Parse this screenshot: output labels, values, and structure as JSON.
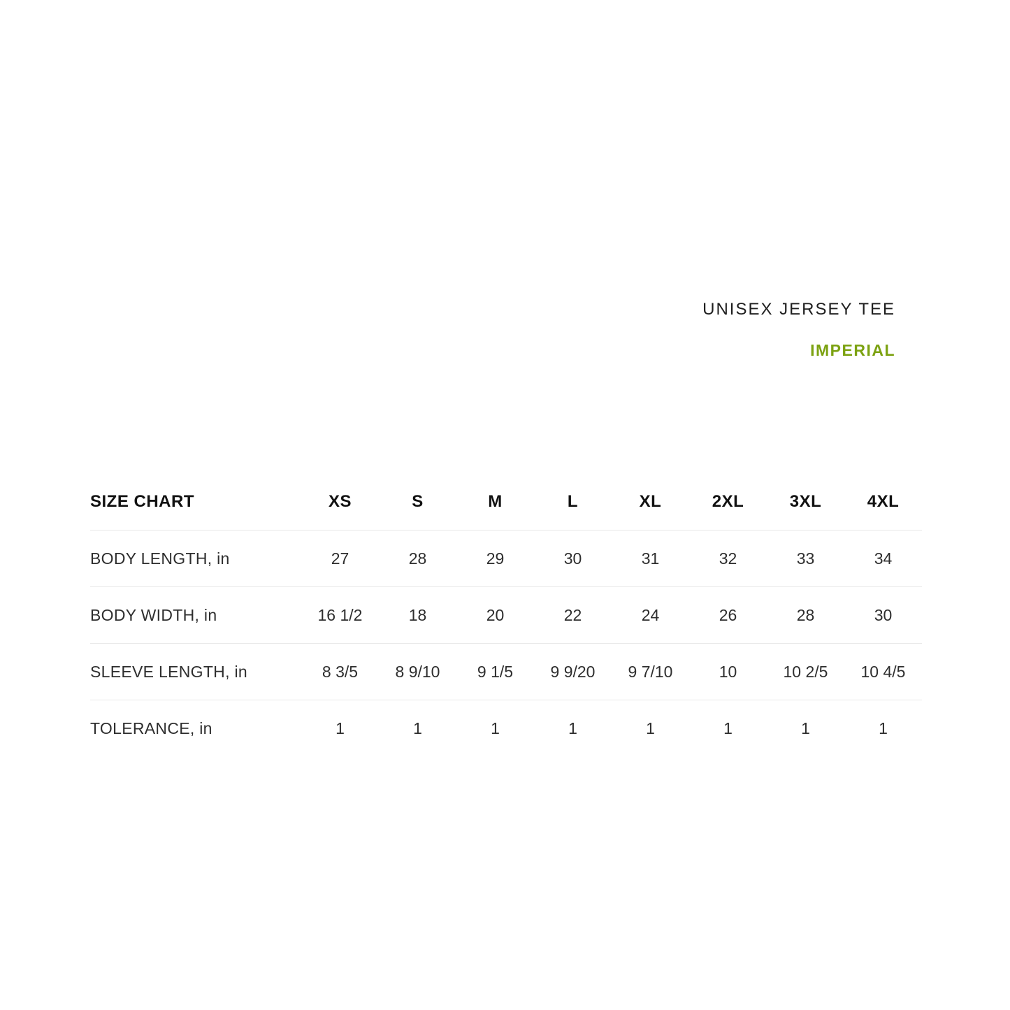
{
  "page": {
    "background_color": "#ffffff",
    "accent_color": "#7ca212",
    "text_color": "#1f1f1f",
    "divider_color": "#e9e9e9"
  },
  "header": {
    "product_title": "UNISEX JERSEY TEE",
    "unit_system": "IMPERIAL"
  },
  "chart_data": {
    "type": "table",
    "title": "SIZE CHART",
    "columns": [
      "XS",
      "S",
      "M",
      "L",
      "XL",
      "2XL",
      "3XL",
      "4XL"
    ],
    "rows": [
      {
        "label": "BODY LENGTH, in",
        "values": [
          "27",
          "28",
          "29",
          "30",
          "31",
          "32",
          "33",
          "34"
        ]
      },
      {
        "label": "BODY WIDTH, in",
        "values": [
          "16 1/2",
          "18",
          "20",
          "22",
          "24",
          "26",
          "28",
          "30"
        ]
      },
      {
        "label": "SLEEVE LENGTH, in",
        "values": [
          "8 3/5",
          "8 9/10",
          "9 1/5",
          "9 9/20",
          "9 7/10",
          "10",
          "10 2/5",
          "10 4/5"
        ]
      },
      {
        "label": "TOLERANCE, in",
        "values": [
          "1",
          "1",
          "1",
          "1",
          "1",
          "1",
          "1",
          "1"
        ]
      }
    ]
  }
}
